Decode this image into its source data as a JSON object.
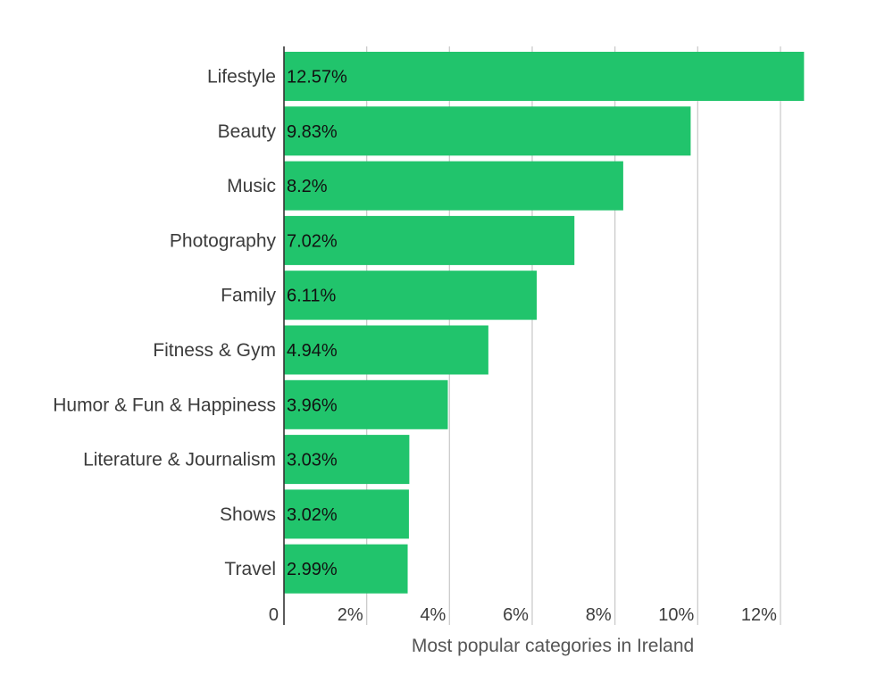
{
  "chart_data": {
    "type": "bar",
    "orientation": "horizontal",
    "categories": [
      "Lifestyle",
      "Beauty",
      "Music",
      "Photography",
      "Family",
      "Fitness & Gym",
      "Humor & Fun & Happiness",
      "Literature & Journalism",
      "Shows",
      "Travel"
    ],
    "values": [
      12.57,
      9.83,
      8.2,
      7.02,
      6.11,
      4.94,
      3.96,
      3.03,
      3.02,
      2.99
    ],
    "value_labels": [
      "12.57%",
      "9.83%",
      "8.2%",
      "7.02%",
      "6.11%",
      "4.94%",
      "3.96%",
      "3.03%",
      "3.02%",
      "2.99%"
    ],
    "xticks": [
      0,
      2,
      4,
      6,
      8,
      10,
      12
    ],
    "xtick_labels": [
      "0",
      "2%",
      "4%",
      "6%",
      "8%",
      "10%",
      "12%"
    ],
    "xlim": [
      0,
      12.57
    ],
    "xlabel": "Most popular categories in Ireland",
    "ylabel": "",
    "title": "",
    "grid": true,
    "legend": "none",
    "bar_color": "#21c46c",
    "grid_color": "#cccccc",
    "axis_color": "#333333"
  }
}
